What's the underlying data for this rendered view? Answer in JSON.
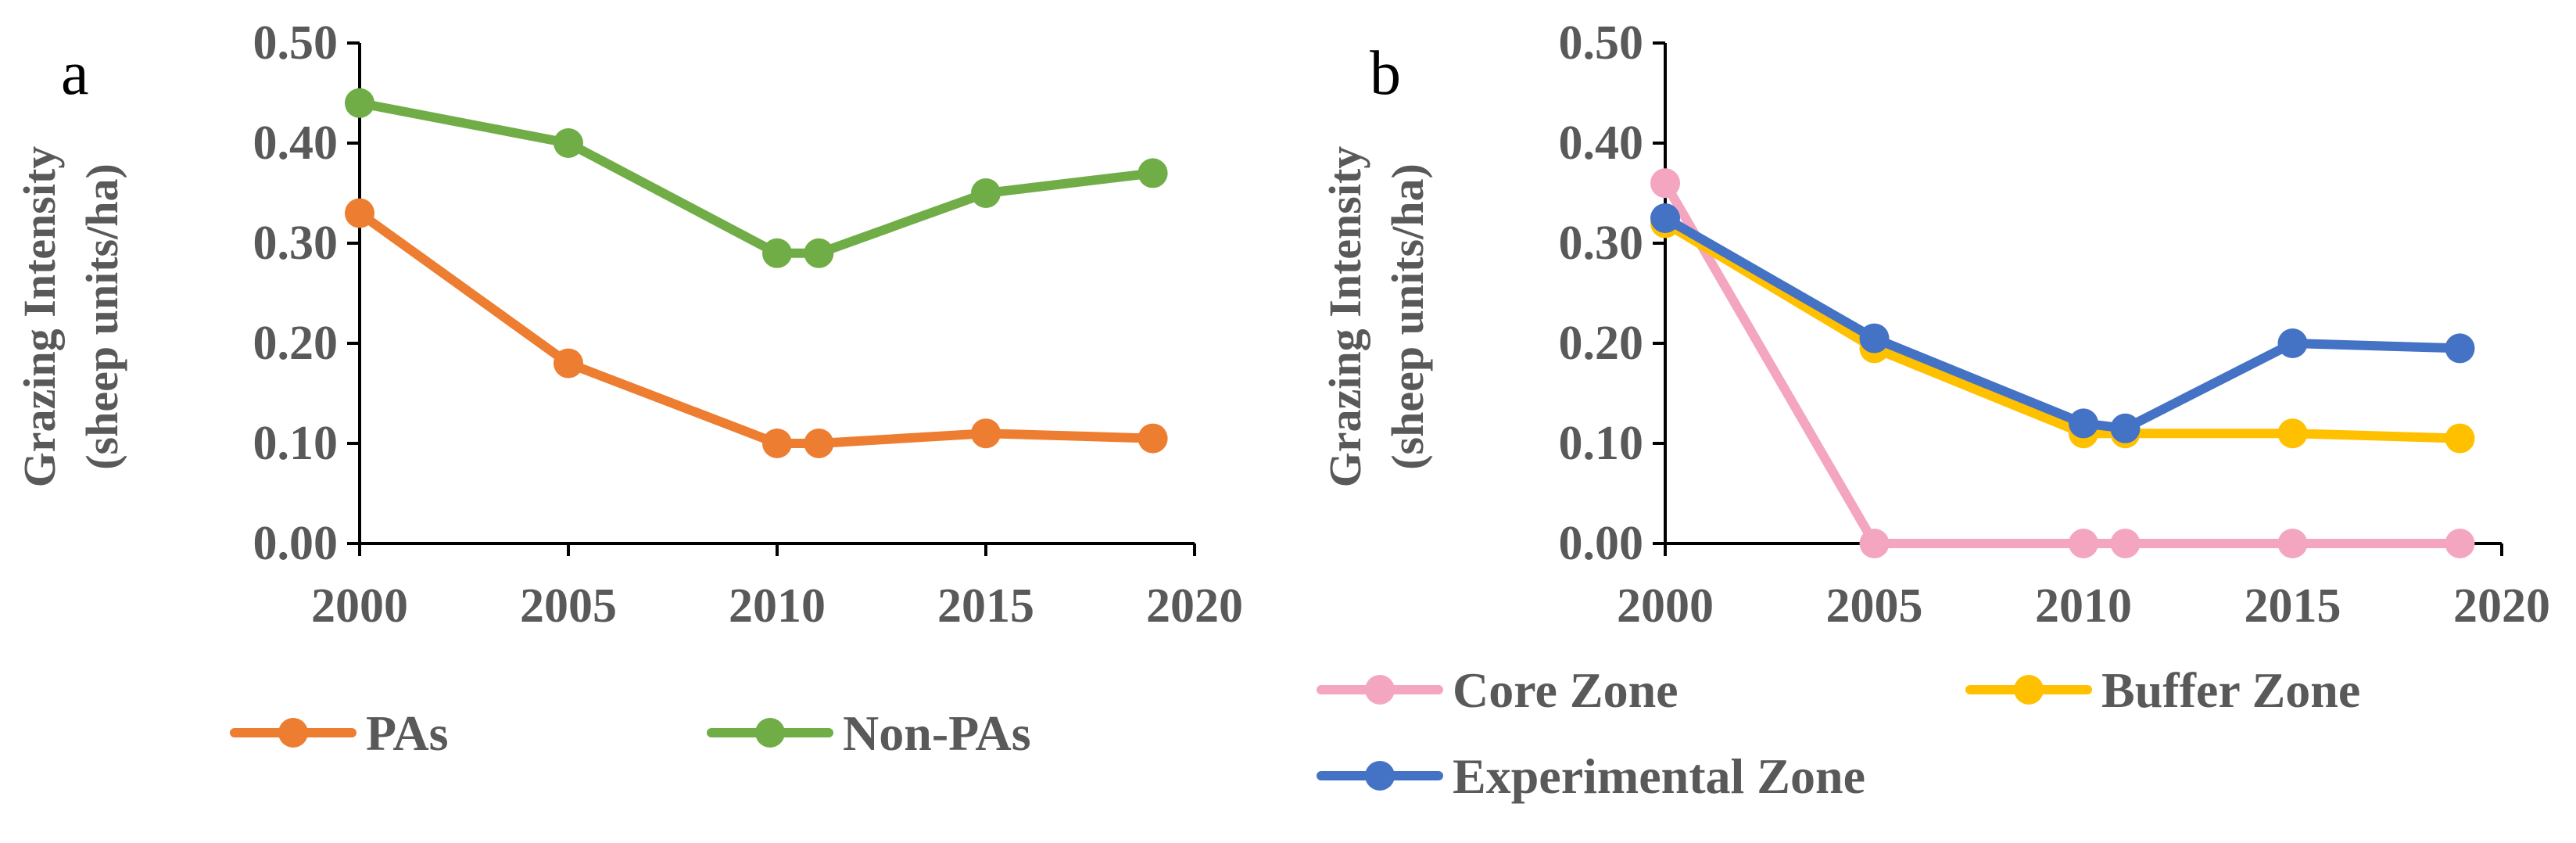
{
  "chart_data": [
    {
      "type": "line",
      "panel_label": "a",
      "ylabel_line1": "Grazing Intensity",
      "ylabel_line2": "(sheep units/ha)",
      "xlim": [
        2000,
        2020
      ],
      "ylim": [
        0,
        0.5
      ],
      "x_ticks": [
        2000,
        2005,
        2010,
        2015,
        2020
      ],
      "x_tick_labels": [
        "2000",
        "2005",
        "2010",
        "2015",
        "2020"
      ],
      "y_ticks": [
        0,
        0.1,
        0.2,
        0.3,
        0.4,
        0.5
      ],
      "y_tick_labels": [
        "0.00",
        "0.10",
        "0.20",
        "0.30",
        "0.40",
        "0.50"
      ],
      "grid": false,
      "legend_position": "bottom",
      "x": [
        2000,
        2005,
        2010,
        2011,
        2015,
        2019
      ],
      "series": [
        {
          "name": "PAs",
          "color": "#ED7D31",
          "values": [
            0.33,
            0.18,
            0.1,
            0.1,
            0.11,
            0.105
          ]
        },
        {
          "name": "Non-PAs",
          "color": "#70AD47",
          "values": [
            0.44,
            0.4,
            0.29,
            0.29,
            0.35,
            0.37
          ]
        }
      ]
    },
    {
      "type": "line",
      "panel_label": "b",
      "ylabel_line1": "Grazing Intensity",
      "ylabel_line2": "(sheep units/ha)",
      "xlim": [
        2000,
        2020
      ],
      "ylim": [
        0,
        0.5
      ],
      "x_ticks": [
        2000,
        2005,
        2010,
        2015,
        2020
      ],
      "x_tick_labels": [
        "2000",
        "2005",
        "2010",
        "2015",
        "2020"
      ],
      "y_ticks": [
        0,
        0.1,
        0.2,
        0.3,
        0.4,
        0.5
      ],
      "y_tick_labels": [
        "0.00",
        "0.10",
        "0.20",
        "0.30",
        "0.40",
        "0.50"
      ],
      "grid": false,
      "legend_position": "bottom",
      "x": [
        2000,
        2005,
        2010,
        2011,
        2015,
        2019
      ],
      "series": [
        {
          "name": "Core Zone",
          "color": "#F4A6C1",
          "values": [
            0.36,
            0.0,
            0.0,
            0.0,
            0.0,
            0.0
          ]
        },
        {
          "name": "Buffer Zone",
          "color": "#FFC000",
          "values": [
            0.32,
            0.195,
            0.11,
            0.11,
            0.11,
            0.105
          ]
        },
        {
          "name": "Experimental Zone",
          "color": "#4472C4",
          "values": [
            0.325,
            0.205,
            0.12,
            0.115,
            0.2,
            0.195
          ]
        }
      ]
    }
  ]
}
